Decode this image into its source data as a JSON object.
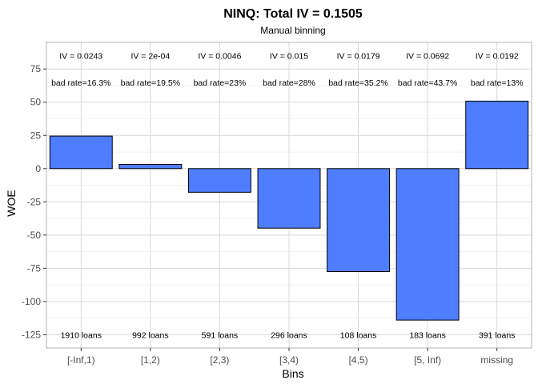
{
  "chart_data": {
    "type": "bar",
    "title": "NINQ: Total IV = 0.1505",
    "subtitle": "Manual binning",
    "xlabel": "Bins",
    "ylabel": "WOE",
    "categories": [
      "[-Inf,1)",
      "[1,2)",
      "[2,3)",
      "[3,4)",
      "[4,5)",
      "[5, Inf)",
      "missing"
    ],
    "values": [
      24.5,
      3.2,
      -17.8,
      -44.8,
      -77.5,
      -114,
      50.8
    ],
    "iv_labels": [
      "IV = 0.0243",
      "IV = 2e-04",
      "IV = 0.0046",
      "IV = 0.015",
      "IV = 0.0179",
      "IV = 0.0692",
      "IV = 0.0192"
    ],
    "bad_rate_labels": [
      "bad rate=16.3%",
      "bad rate=19.5%",
      "bad rate=23%",
      "bad rate=28%",
      "bad rate=35.2%",
      "bad rate=43.7%",
      "bad rate=13%"
    ],
    "count_labels": [
      "1910 loans",
      "992 loans",
      "591 loans",
      "296 loans",
      "108 loans",
      "183 loans",
      "391 loans"
    ],
    "iv_label_y": 85,
    "bad_rate_label_y": 65,
    "count_label_y": -125,
    "ylim": [
      -135,
      95
    ],
    "yticks": [
      -125,
      -100,
      -75,
      -50,
      -25,
      0,
      25,
      50,
      75
    ],
    "grid": true,
    "bar_color": "#4f7dff",
    "bar_outline": "#000000"
  }
}
